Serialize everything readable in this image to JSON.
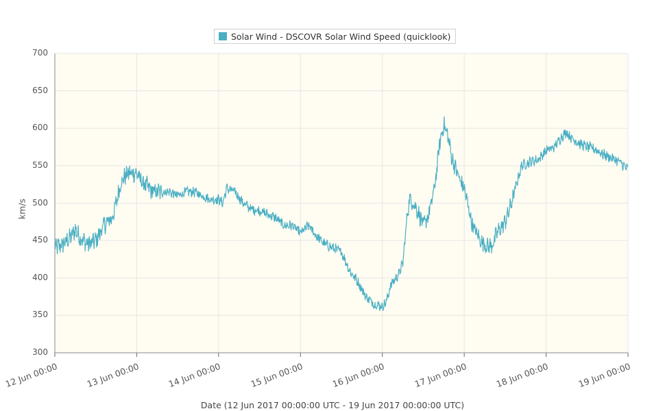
{
  "chart_data": {
    "type": "line",
    "legend": {
      "label": "Solar Wind - DSCOVR Solar Wind Speed (quicklook)",
      "placement": "top-center"
    },
    "ylabel": "km/s",
    "xlabel": "Date (12 Jun 2017 00:00:00 UTC - 19 Jun 2017 00:00:00 UTC)",
    "ylim": [
      300,
      700
    ],
    "y_ticks": [
      "700",
      "650",
      "600",
      "550",
      "500",
      "450",
      "400",
      "350",
      "300"
    ],
    "x_ticks": [
      "12 Jun 00:00",
      "13 Jun 00:00",
      "14 Jun 00:00",
      "15 Jun 00:00",
      "16 Jun 00:00",
      "17 Jun 00:00",
      "18 Jun 00:00",
      "19 Jun 00:00"
    ],
    "xlim_days": [
      0,
      7
    ],
    "grid": true,
    "colors": {
      "series": "#4aafc4",
      "plot_background": "#fffcf2",
      "grid": "#e6e6e6"
    },
    "series": [
      {
        "name": "Solar Wind - DSCOVR Solar Wind Speed (quicklook)",
        "x_days": [
          0,
          0.1,
          0.2,
          0.25,
          0.3,
          0.4,
          0.5,
          0.55,
          0.6,
          0.7,
          0.75,
          0.8,
          0.85,
          0.9,
          0.95,
          1.0,
          1.05,
          1.1,
          1.15,
          1.2,
          1.3,
          1.4,
          1.5,
          1.6,
          1.7,
          1.8,
          1.9,
          2.0,
          2.05,
          2.1,
          2.2,
          2.3,
          2.4,
          2.5,
          2.6,
          2.7,
          2.75,
          2.8,
          2.9,
          3.0,
          3.05,
          3.1,
          3.2,
          3.3,
          3.4,
          3.5,
          3.6,
          3.7,
          3.8,
          3.9,
          4.0,
          4.05,
          4.1,
          4.2,
          4.25,
          4.3,
          4.33,
          4.38,
          4.45,
          4.5,
          4.55,
          4.6,
          4.65,
          4.7,
          4.75,
          4.8,
          4.85,
          4.95,
          5.0,
          5.05,
          5.1,
          5.15,
          5.2,
          5.25,
          5.3,
          5.35,
          5.4,
          5.5,
          5.55,
          5.6,
          5.65,
          5.7,
          5.8,
          5.9,
          6.0,
          6.1,
          6.2,
          6.25,
          6.3,
          6.4,
          6.5,
          6.6,
          6.7,
          6.8,
          6.9,
          7.0
        ],
        "values": [
          440,
          445,
          455,
          465,
          455,
          445,
          450,
          460,
          470,
          480,
          500,
          525,
          535,
          540,
          540,
          540,
          530,
          525,
          520,
          515,
          515,
          515,
          510,
          515,
          515,
          510,
          505,
          505,
          500,
          520,
          515,
          500,
          492,
          490,
          485,
          480,
          475,
          470,
          470,
          460,
          465,
          470,
          455,
          445,
          440,
          435,
          410,
          395,
          375,
          365,
          362,
          368,
          390,
          405,
          420,
          480,
          505,
          500,
          485,
          470,
          480,
          500,
          530,
          580,
          605,
          590,
          560,
          530,
          520,
          495,
          470,
          460,
          450,
          445,
          442,
          445,
          460,
          475,
          490,
          510,
          530,
          550,
          555,
          558,
          570,
          575,
          590,
          595,
          588,
          580,
          575,
          572,
          565,
          560,
          555,
          545
        ]
      }
    ]
  }
}
